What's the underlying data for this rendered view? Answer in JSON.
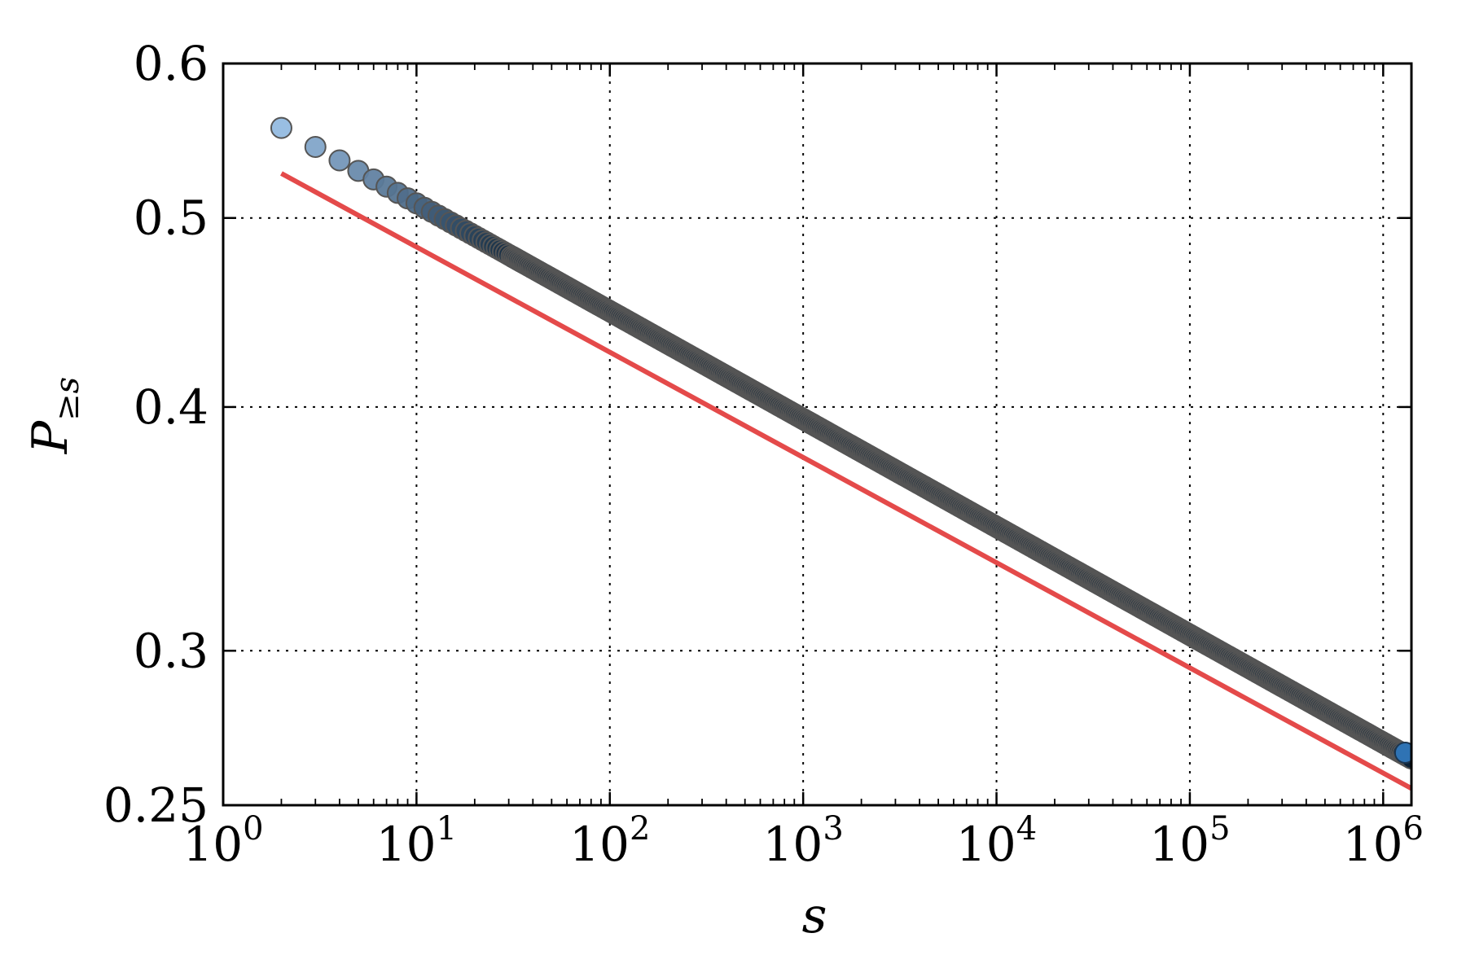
{
  "chart_data": {
    "type": "scatter",
    "xlabel": "s",
    "ylabel_main": "P",
    "ylabel_sub": "≥s",
    "x_scale": "log",
    "y_scale": "log",
    "xlim": [
      1,
      1400000
    ],
    "ylim": [
      0.25,
      0.6
    ],
    "grid": true,
    "x_ticks": [
      {
        "value": 1,
        "base": "10",
        "exp": "0"
      },
      {
        "value": 10,
        "base": "10",
        "exp": "1"
      },
      {
        "value": 100,
        "base": "10",
        "exp": "2"
      },
      {
        "value": 1000,
        "base": "10",
        "exp": "3"
      },
      {
        "value": 10000,
        "base": "10",
        "exp": "4"
      },
      {
        "value": 100000,
        "base": "10",
        "exp": "5"
      },
      {
        "value": 1000000,
        "base": "10",
        "exp": "6"
      }
    ],
    "y_ticks": [
      {
        "value": 0.25,
        "label": "0.25"
      },
      {
        "value": 0.3,
        "label": "0.3"
      },
      {
        "value": 0.4,
        "label": "0.4"
      },
      {
        "value": 0.5,
        "label": "0.5"
      },
      {
        "value": 0.6,
        "label": "0.6"
      }
    ],
    "series": [
      {
        "kind": "scatter",
        "color_light": "#94bae0",
        "color_dark": "#0c2236",
        "edge_color": "#555555",
        "model": {
          "a": 0.5778,
          "b": 0.0553
        },
        "x_range": [
          2,
          1400000
        ],
        "points": [
          [
            2,
            0.577
          ],
          [
            3,
            0.55
          ],
          [
            4,
            0.537
          ],
          [
            5,
            0.528
          ],
          [
            6,
            0.521
          ],
          [
            7,
            0.516
          ],
          [
            8,
            0.513
          ],
          [
            9,
            0.51
          ],
          [
            10,
            0.507
          ],
          [
            20,
            0.491
          ],
          [
            50,
            0.468
          ],
          [
            100,
            0.449
          ],
          [
            1000,
            0.4
          ],
          [
            10000,
            0.352
          ],
          [
            100000,
            0.312
          ],
          [
            1000000,
            0.271
          ],
          [
            1300000,
            0.266
          ]
        ]
      },
      {
        "kind": "line",
        "color": "#e44a4a",
        "x": [
          2,
          1400000
        ],
        "y": [
          0.527,
          0.255
        ]
      }
    ]
  }
}
